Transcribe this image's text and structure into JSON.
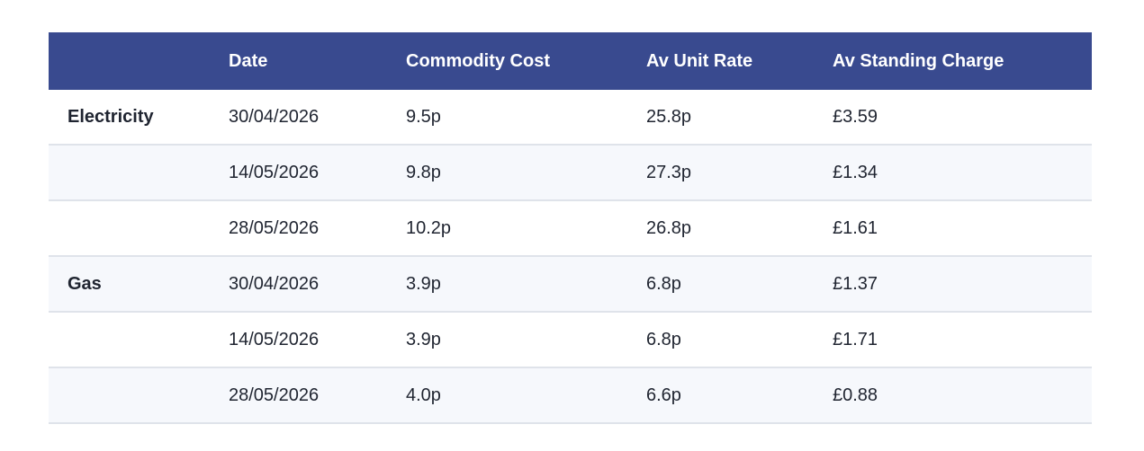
{
  "table": {
    "header": [
      "Date",
      "Commodity Cost",
      "Av Unit Rate",
      "Av Standing Charge"
    ],
    "groups": [
      {
        "name": "Electricity",
        "rows": [
          [
            "30/04/2026",
            "9.5p",
            "25.8p",
            "£3.59"
          ],
          [
            "14/05/2026",
            "9.8p",
            "27.3p",
            "£1.34"
          ],
          [
            "28/05/2026",
            "10.2p",
            "26.8p",
            "£1.61"
          ]
        ]
      },
      {
        "name": "Gas",
        "rows": [
          [
            "30/04/2026",
            "3.9p",
            "6.8p",
            "£1.37"
          ],
          [
            "14/05/2026",
            "3.9p",
            "6.8p",
            "£1.71"
          ],
          [
            "28/05/2026",
            "4.0p",
            "6.6p",
            "£0.88"
          ]
        ]
      }
    ]
  }
}
